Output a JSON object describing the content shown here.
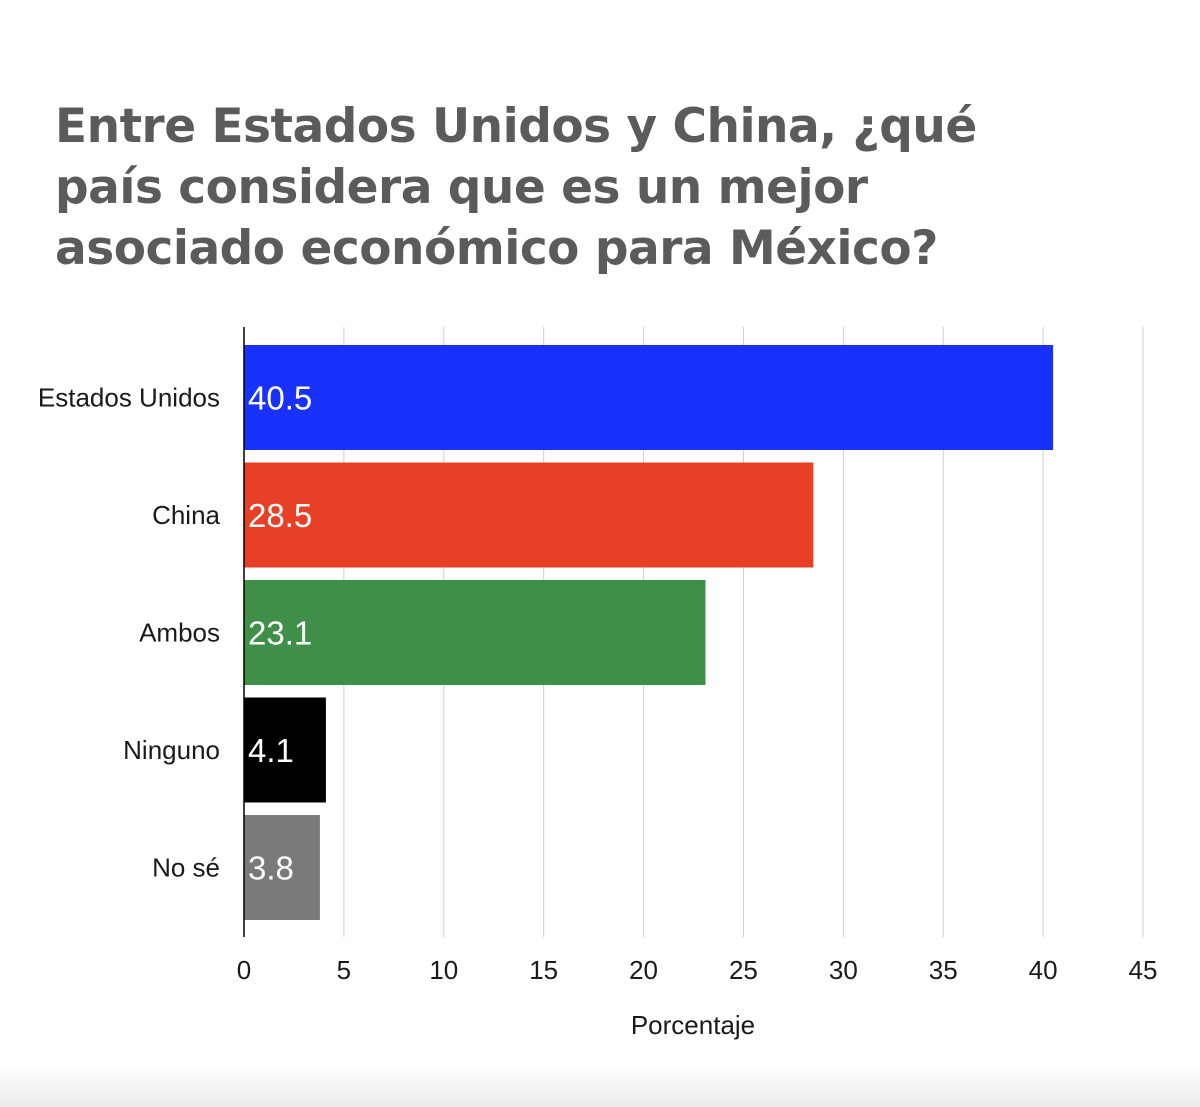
{
  "chart_data": {
    "type": "bar",
    "orientation": "horizontal",
    "title": "Entre Estados Unidos y China, ¿qué país considera que es un mejor asociado económico para México?",
    "xlabel": "Porcentaje",
    "ylabel": "",
    "categories": [
      "Estados Unidos",
      "China",
      "Ambos",
      "Ninguno",
      "No sé"
    ],
    "values": [
      40.5,
      28.5,
      23.1,
      4.1,
      3.8
    ],
    "value_labels": [
      "40.5",
      "28.5",
      "23.1",
      "4.1",
      "3.8"
    ],
    "colors": [
      "#1832fb",
      "#e84026",
      "#3f8f48",
      "#000000",
      "#7b7979"
    ],
    "xlim": [
      0,
      45
    ],
    "xticks": [
      0,
      5,
      10,
      15,
      20,
      25,
      30,
      35,
      40,
      45
    ],
    "grid": true,
    "legend": "none"
  }
}
